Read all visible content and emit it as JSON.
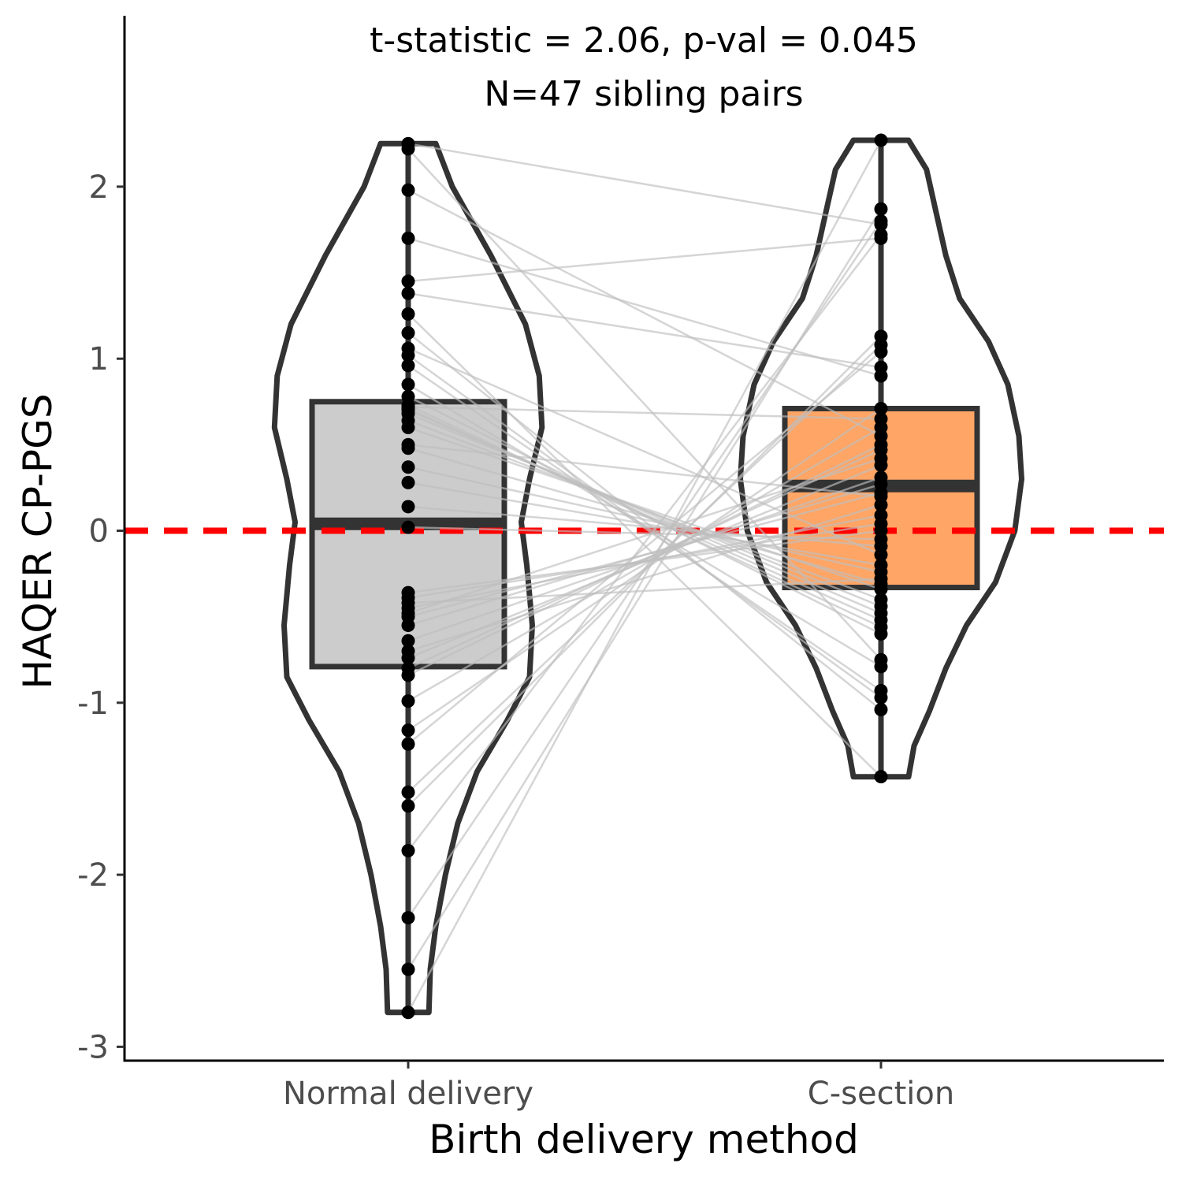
{
  "chart_data": {
    "type": "violin",
    "annotation": [
      "t-statistic = 2.06, p-val = 0.045",
      "N=47 sibling pairs"
    ],
    "xlabel": "Birth delivery method",
    "ylabel": "HAQER CP-PGS",
    "categories": [
      "Normal delivery",
      "C-section"
    ],
    "yticks": [
      2,
      1,
      0,
      -1,
      -2,
      -3
    ],
    "ytick_labels": [
      "2",
      "1",
      "0",
      "-1",
      "-2",
      "-3"
    ],
    "ylim": [
      -3.1,
      2.85
    ],
    "reference_line": {
      "y": 0,
      "color": "#ff0000",
      "style": "dashed"
    },
    "grid": false,
    "colors": {
      "normal_box": "#cccccc",
      "csection_box": "#ffa565",
      "outline": "#333333",
      "points": "#000000",
      "pair_lines": "#bfbfbf"
    },
    "box": [
      {
        "category": "Normal delivery",
        "q1": -0.79,
        "median": 0.04,
        "q3": 0.75,
        "whisker_low": -2.8,
        "whisker_high": 2.25
      },
      {
        "category": "C-section",
        "q1": -0.33,
        "median": 0.26,
        "q3": 0.71,
        "whisker_low": -1.43,
        "whisker_high": 2.27
      }
    ],
    "violin_density": [
      {
        "category": "Normal delivery",
        "profile": [
          [
            2.25,
            0.2
          ],
          [
            2.0,
            0.32
          ],
          [
            1.6,
            0.6
          ],
          [
            1.2,
            0.85
          ],
          [
            0.9,
            0.95
          ],
          [
            0.6,
            0.97
          ],
          [
            0.3,
            0.88
          ],
          [
            0.05,
            0.82
          ],
          [
            -0.2,
            0.86
          ],
          [
            -0.55,
            0.9
          ],
          [
            -0.85,
            0.88
          ],
          [
            -1.1,
            0.72
          ],
          [
            -1.4,
            0.5
          ],
          [
            -1.7,
            0.36
          ],
          [
            -2.0,
            0.27
          ],
          [
            -2.3,
            0.2
          ],
          [
            -2.55,
            0.16
          ],
          [
            -2.8,
            0.15
          ]
        ]
      },
      {
        "category": "C-section",
        "profile": [
          [
            2.27,
            0.2
          ],
          [
            2.1,
            0.33
          ],
          [
            1.85,
            0.4
          ],
          [
            1.6,
            0.47
          ],
          [
            1.35,
            0.57
          ],
          [
            1.1,
            0.78
          ],
          [
            0.85,
            0.92
          ],
          [
            0.55,
            1.0
          ],
          [
            0.3,
            1.02
          ],
          [
            0.0,
            0.97
          ],
          [
            -0.3,
            0.83
          ],
          [
            -0.55,
            0.62
          ],
          [
            -0.8,
            0.47
          ],
          [
            -1.05,
            0.35
          ],
          [
            -1.25,
            0.24
          ],
          [
            -1.43,
            0.2
          ]
        ]
      }
    ],
    "pairs": [
      [
        -2.8,
        2.27
      ],
      [
        -2.55,
        1.87
      ],
      [
        -2.25,
        1.8
      ],
      [
        -1.86,
        1.72
      ],
      [
        -1.6,
        1.13
      ],
      [
        -1.52,
        1.08
      ],
      [
        -1.24,
        1.04
      ],
      [
        -1.16,
        0.71
      ],
      [
        -0.99,
        0.6
      ],
      [
        -0.84,
        0.5
      ],
      [
        -0.8,
        0.47
      ],
      [
        -0.74,
        0.38
      ],
      [
        -0.64,
        0.31
      ],
      [
        -0.55,
        0.27
      ],
      [
        -0.5,
        0.22
      ],
      [
        -0.45,
        0.09
      ],
      [
        -0.39,
        0.04
      ],
      [
        -0.36,
        0.0
      ],
      [
        0.02,
        -0.05
      ],
      [
        0.14,
        -0.09
      ],
      [
        0.28,
        -0.2
      ],
      [
        0.37,
        -0.24
      ],
      [
        0.48,
        -0.31
      ],
      [
        0.6,
        -0.34
      ],
      [
        0.64,
        -0.4
      ],
      [
        0.68,
        -0.44
      ],
      [
        0.7,
        -0.48
      ],
      [
        0.71,
        -0.52
      ],
      [
        0.73,
        -0.56
      ],
      [
        0.78,
        -0.6
      ],
      [
        0.85,
        -0.79
      ],
      [
        0.96,
        -0.93
      ],
      [
        1.02,
        -0.97
      ],
      [
        1.15,
        -1.04
      ],
      [
        1.26,
        -1.43
      ],
      [
        1.38,
        0.95
      ],
      [
        1.45,
        1.7
      ],
      [
        1.7,
        0.9
      ],
      [
        1.98,
        0.55
      ],
      [
        2.22,
        -0.75
      ],
      [
        -0.7,
        0.15
      ],
      [
        -0.48,
        0.42
      ],
      [
        -0.42,
        -0.28
      ],
      [
        0.5,
        0.2
      ],
      [
        1.06,
        -0.14
      ],
      [
        0.72,
        0.65
      ],
      [
        2.25,
        1.78
      ]
    ]
  }
}
